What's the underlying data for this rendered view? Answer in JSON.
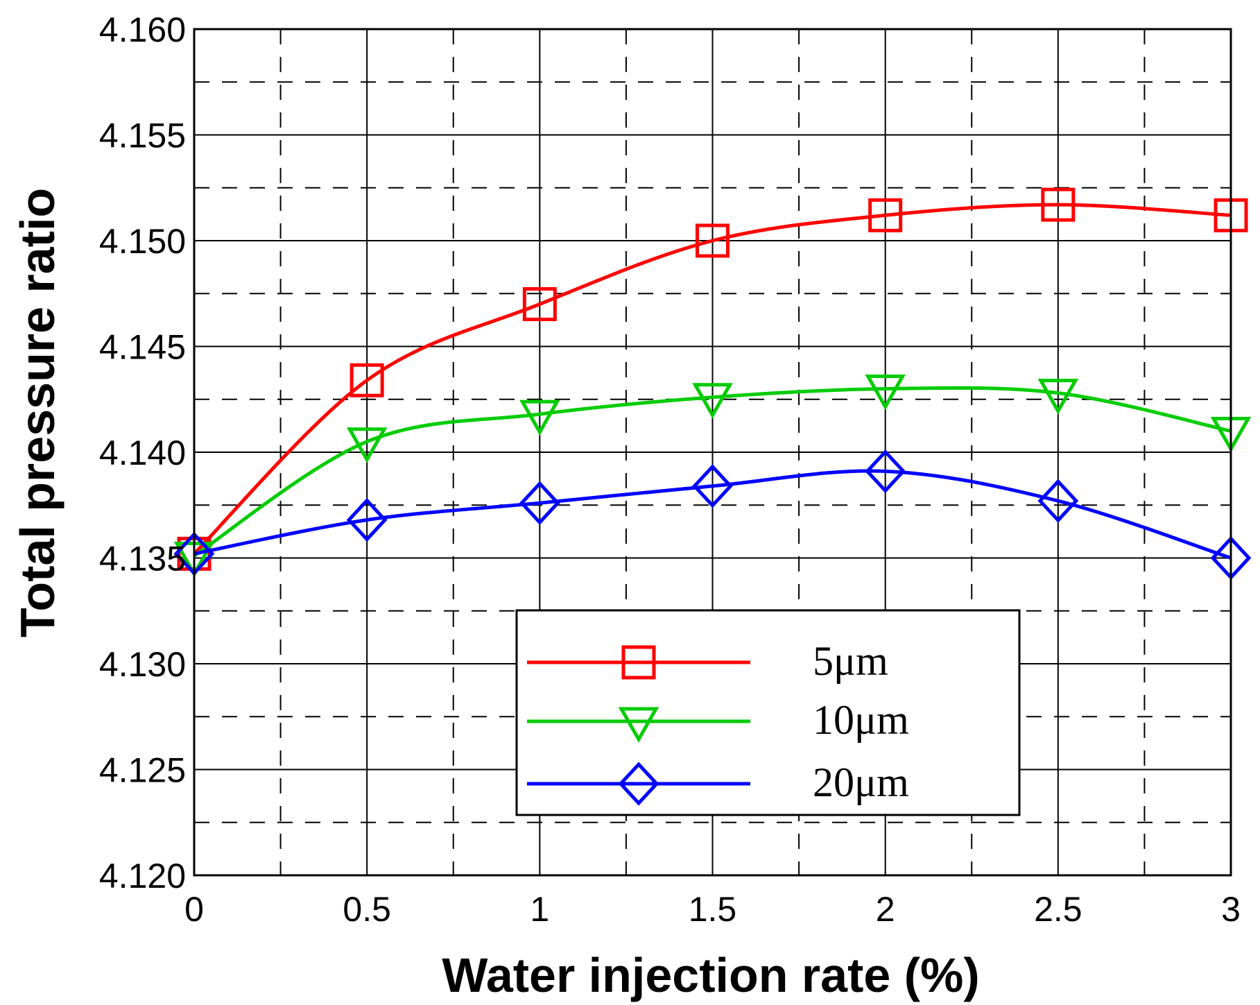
{
  "chart_data": {
    "type": "line",
    "xlabel": "Water injection rate (%)",
    "ylabel": "Total pressure ratio",
    "xlim": [
      0,
      3
    ],
    "ylim": [
      4.12,
      4.16
    ],
    "x_major_ticks": [
      0,
      0.5,
      1,
      1.5,
      2,
      2.5,
      3
    ],
    "x_tick_labels": [
      "0",
      "0.5",
      "1",
      "1.5",
      "2",
      "2.5",
      "3"
    ],
    "y_major_ticks": [
      4.12,
      4.125,
      4.13,
      4.135,
      4.14,
      4.145,
      4.15,
      4.155,
      4.16
    ],
    "y_tick_labels": [
      "4.120",
      "4.125",
      "4.130",
      "4.135",
      "4.140",
      "4.145",
      "4.150",
      "4.155",
      "4.160"
    ],
    "grid": "major solid, minor dashed",
    "legend_position": "bottom-center",
    "x": [
      0,
      0.5,
      1,
      1.5,
      2,
      2.5,
      3
    ],
    "series": [
      {
        "name": "5μm",
        "color": "#ff0000",
        "marker": "square",
        "values": [
          4.1352,
          4.1434,
          4.147,
          4.15,
          4.1512,
          4.1517,
          4.1512
        ]
      },
      {
        "name": "10μm",
        "color": "#00cc00",
        "marker": "triangle-down",
        "values": [
          4.1351,
          4.1405,
          4.1418,
          4.1426,
          4.143,
          4.1428,
          4.141
        ]
      },
      {
        "name": "20μm",
        "color": "#0000ff",
        "marker": "diamond",
        "values": [
          4.1352,
          4.1368,
          4.1376,
          4.1384,
          4.1391,
          4.1377,
          4.135
        ]
      }
    ]
  }
}
